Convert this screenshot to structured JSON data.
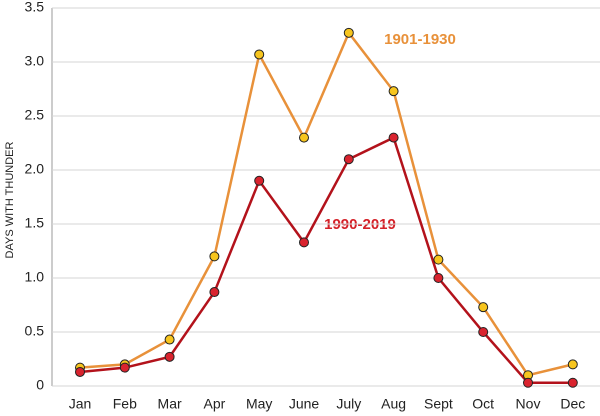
{
  "chart_data": {
    "type": "line",
    "y_label": "DAYS WITH THUNDER",
    "categories": [
      "Jan",
      "Feb",
      "Mar",
      "Apr",
      "May",
      "June",
      "July",
      "Aug",
      "Sept",
      "Oct",
      "Nov",
      "Dec"
    ],
    "series": [
      {
        "name": "1901-1930",
        "color": "#e8913a",
        "marker_color": "#f7c51e",
        "values": [
          0.17,
          0.2,
          0.43,
          1.2,
          3.07,
          2.3,
          3.27,
          2.73,
          1.17,
          0.73,
          0.1,
          0.2
        ]
      },
      {
        "name": "1990-2019",
        "color": "#b3121b",
        "marker_color": "#d9232e",
        "values": [
          0.13,
          0.17,
          0.27,
          0.87,
          1.9,
          1.33,
          2.1,
          2.3,
          1.0,
          0.5,
          0.03,
          0.03
        ]
      }
    ],
    "ylim": [
      0,
      3.5
    ],
    "yticks": [
      0,
      0.5,
      {
        "value": 1,
        "label": "1.0"
      },
      1.5,
      {
        "value": 2,
        "label": "2.0"
      },
      2.5,
      {
        "value": 3,
        "label": "3.0"
      },
      3.5
    ],
    "grid": true
  }
}
